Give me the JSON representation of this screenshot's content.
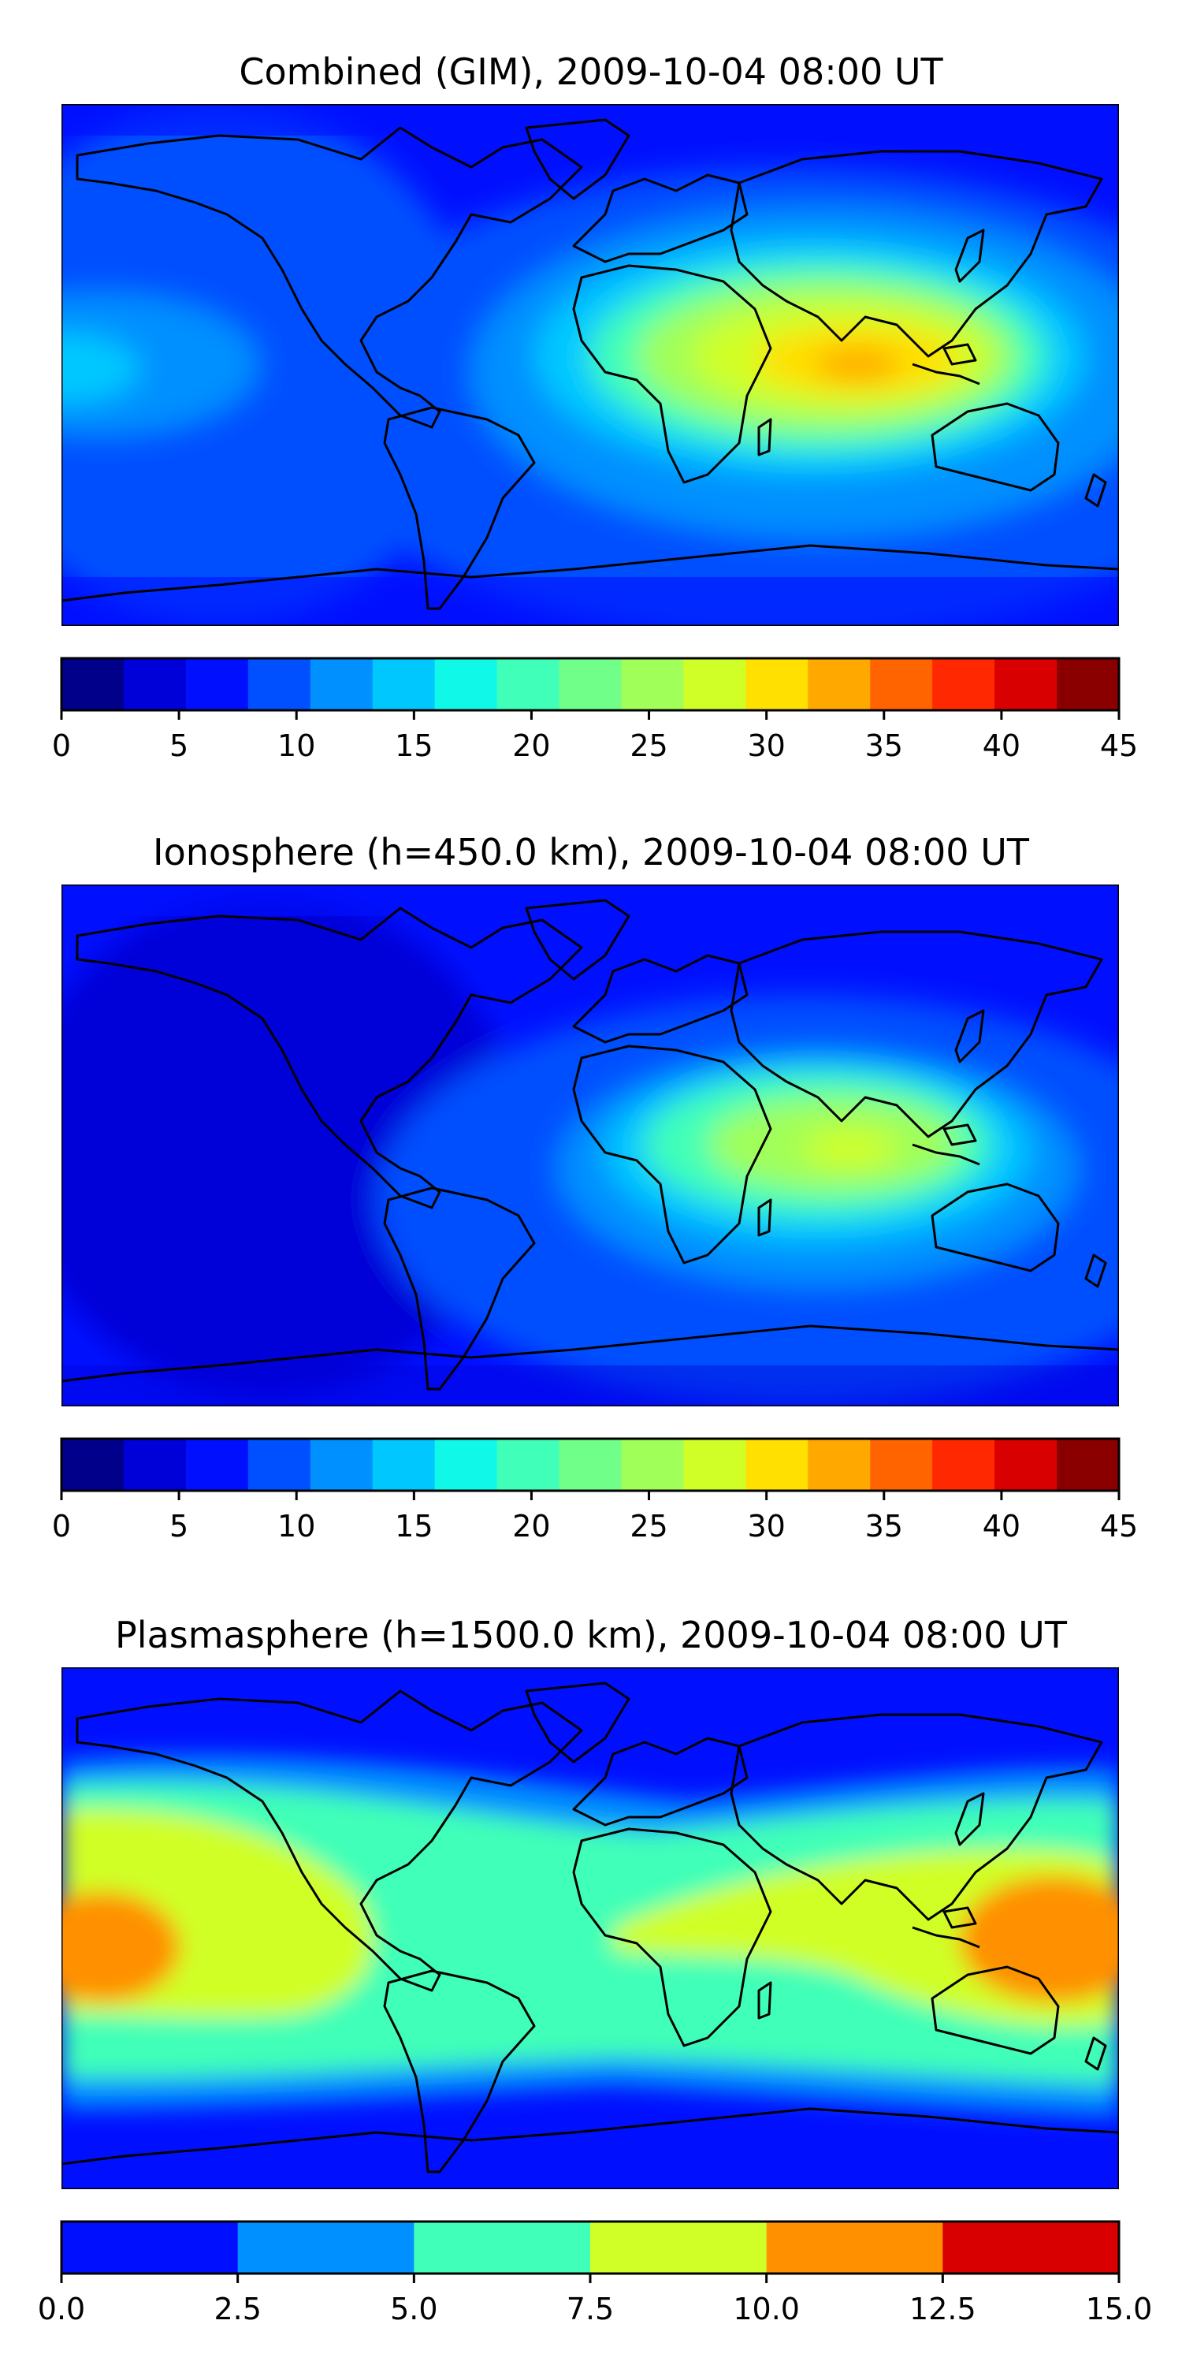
{
  "panels": [
    {
      "id": "combined",
      "title": "Combined (GIM), 2009-10-04 08:00 UT",
      "colorbar": {
        "ticks": [
          "0",
          "5",
          "10",
          "15",
          "20",
          "25",
          "30",
          "35",
          "40",
          "45"
        ],
        "levels": [
          "#00008a",
          "#0000d8",
          "#0010ff",
          "#0050ff",
          "#0090ff",
          "#00c8ff",
          "#10f8e8",
          "#40ffb8",
          "#70ff88",
          "#a0ff58",
          "#d0ff28",
          "#ffe000",
          "#ffa800",
          "#ff6400",
          "#ff2800",
          "#d80000",
          "#8a0000"
        ]
      }
    },
    {
      "id": "ionosphere",
      "title": "Ionosphere  (h=450.0 km), 2009-10-04 08:00 UT",
      "colorbar": {
        "ticks": [
          "0",
          "5",
          "10",
          "15",
          "20",
          "25",
          "30",
          "35",
          "40",
          "45"
        ],
        "levels": [
          "#00008a",
          "#0000d8",
          "#0010ff",
          "#0050ff",
          "#0090ff",
          "#00c8ff",
          "#10f8e8",
          "#40ffb8",
          "#70ff88",
          "#a0ff58",
          "#d0ff28",
          "#ffe000",
          "#ffa800",
          "#ff6400",
          "#ff2800",
          "#d80000",
          "#8a0000"
        ]
      }
    },
    {
      "id": "plasmasphere",
      "title": "Plasmasphere (h=1500.0 km), 2009-10-04 08:00 UT",
      "colorbar": {
        "ticks": [
          "0.0",
          "2.5",
          "5.0",
          "7.5",
          "10.0",
          "12.5",
          "15.0"
        ],
        "levels": [
          "#0010ff",
          "#0090ff",
          "#40ffb8",
          "#d0ff28",
          "#ff9000",
          "#d80000"
        ]
      }
    }
  ]
}
